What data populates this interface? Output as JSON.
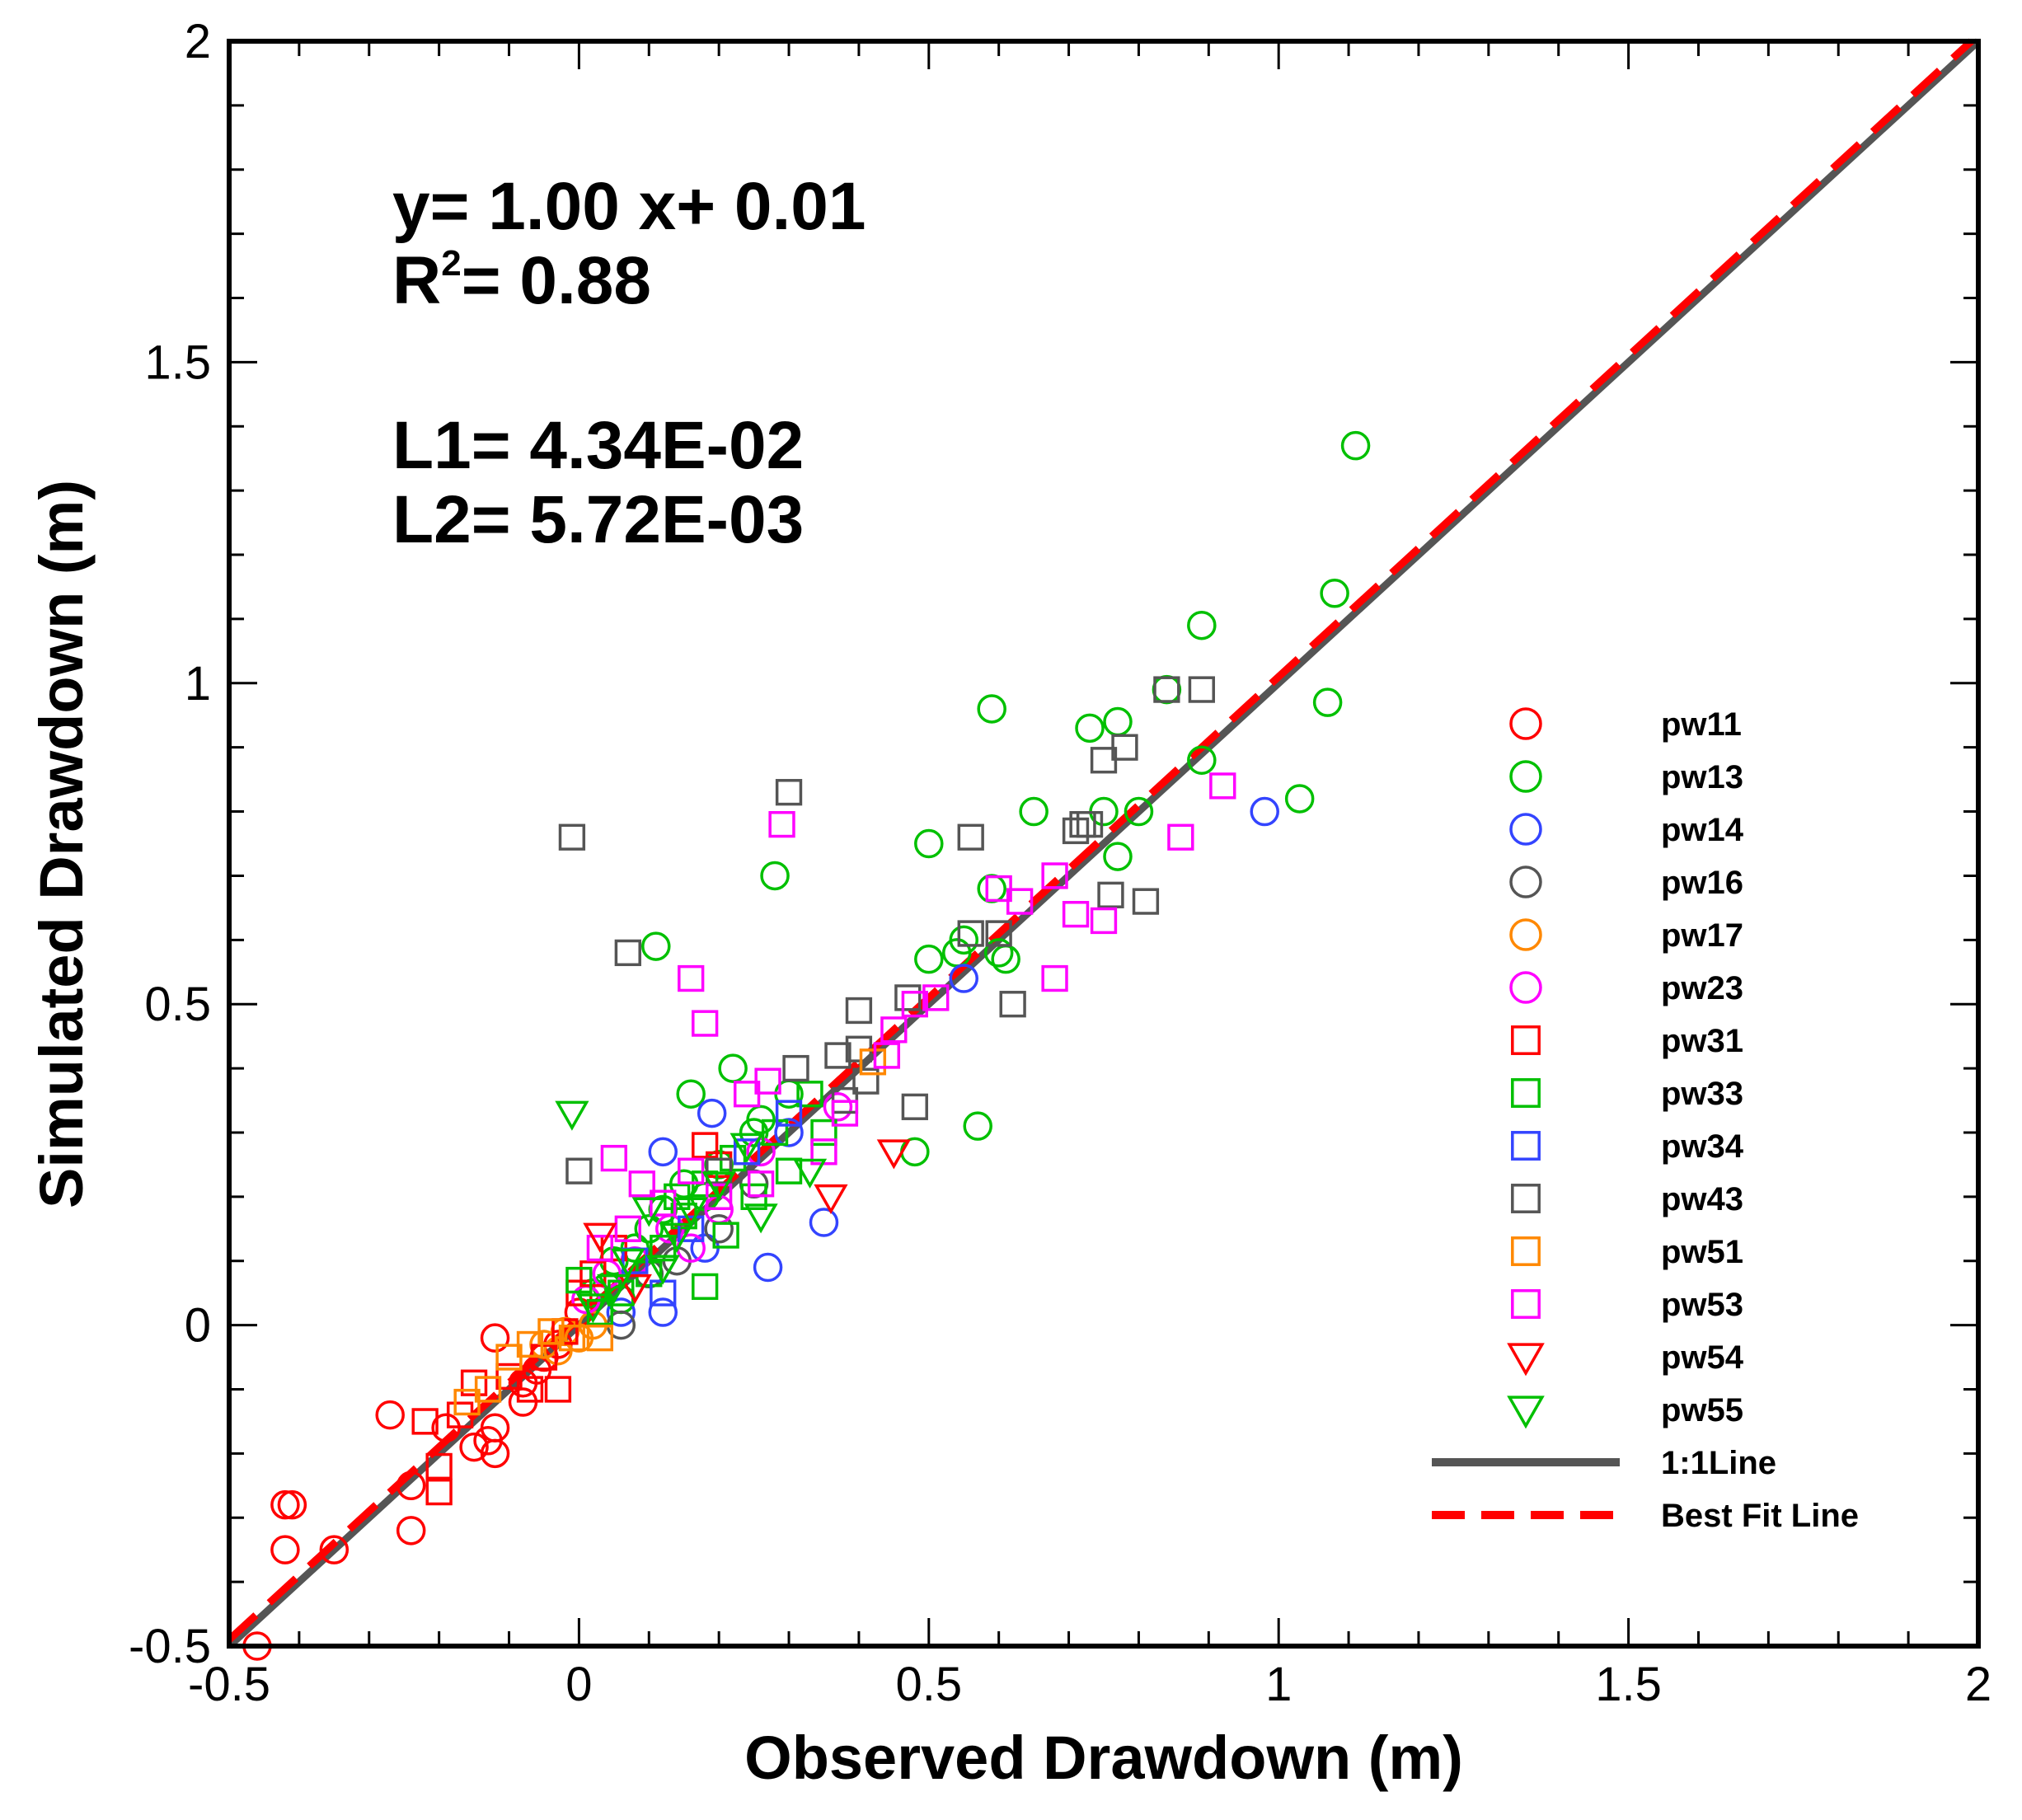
{
  "chart_data": {
    "type": "scatter",
    "title": "",
    "xlabel": "Observed Drawdown (m)",
    "ylabel": "Simulated Drawdown (m)",
    "xlim": [
      -0.5,
      2
    ],
    "ylim": [
      -0.5,
      2
    ],
    "x_ticks": [
      -0.5,
      0,
      0.5,
      1,
      1.5,
      2
    ],
    "x_tick_labels": [
      "-0.5",
      "0",
      "0.5",
      "1",
      "1.5",
      "2"
    ],
    "y_ticks": [
      -0.5,
      0,
      0.5,
      1,
      1.5,
      2
    ],
    "y_tick_labels": [
      "-0.5",
      "0",
      "0.5",
      "1",
      "1.5",
      "2"
    ],
    "grid": false,
    "legend_position": "right",
    "annotations": {
      "fit_equation": "y= 1.00 x+ 0.01",
      "r2_prefix": "R",
      "r2_exponent": "2",
      "r2_value": "= 0.88",
      "l1": "L1= 4.34E-02",
      "l2": "L2= 5.72E-03"
    },
    "lines": [
      {
        "name": "1:1Line",
        "color": "#555555",
        "style": "solid",
        "slope": 1.0,
        "intercept": 0.0
      },
      {
        "name": "Best Fit Line",
        "color": "#ff0000",
        "style": "dashed",
        "slope": 1.0,
        "intercept": 0.01
      }
    ],
    "series": [
      {
        "name": "pw11",
        "marker": "circle",
        "color": "#ff0000",
        "points": [
          [
            -0.46,
            -0.5
          ],
          [
            -0.42,
            -0.28
          ],
          [
            -0.41,
            -0.28
          ],
          [
            -0.42,
            -0.35
          ],
          [
            -0.35,
            -0.35
          ],
          [
            -0.27,
            -0.14
          ],
          [
            -0.24,
            -0.32
          ],
          [
            -0.24,
            -0.25
          ],
          [
            -0.19,
            -0.16
          ],
          [
            -0.15,
            -0.19
          ],
          [
            -0.12,
            -0.2
          ],
          [
            -0.12,
            -0.16
          ],
          [
            -0.13,
            -0.18
          ],
          [
            -0.12,
            -0.02
          ],
          [
            -0.08,
            -0.12
          ],
          [
            -0.08,
            -0.09
          ],
          [
            -0.06,
            -0.07
          ],
          [
            -0.05,
            -0.05
          ],
          [
            -0.03,
            -0.03
          ],
          [
            0.0,
            0.02
          ]
        ]
      },
      {
        "name": "pw13",
        "marker": "circle",
        "color": "#00c000",
        "points": [
          [
            1.11,
            1.37
          ],
          [
            1.08,
            1.14
          ],
          [
            0.89,
            1.09
          ],
          [
            0.84,
            0.99
          ],
          [
            0.77,
            0.94
          ],
          [
            0.73,
            0.93
          ],
          [
            0.59,
            0.96
          ],
          [
            1.07,
            0.97
          ],
          [
            0.89,
            0.88
          ],
          [
            0.8,
            0.8
          ],
          [
            0.77,
            0.73
          ],
          [
            0.75,
            0.8
          ],
          [
            0.65,
            0.8
          ],
          [
            1.03,
            0.82
          ],
          [
            0.5,
            0.75
          ],
          [
            0.28,
            0.7
          ],
          [
            0.59,
            0.68
          ],
          [
            0.6,
            0.58
          ],
          [
            0.61,
            0.57
          ],
          [
            0.5,
            0.57
          ],
          [
            0.54,
            0.58
          ],
          [
            0.55,
            0.6
          ],
          [
            0.11,
            0.59
          ],
          [
            0.57,
            0.31
          ],
          [
            0.48,
            0.27
          ],
          [
            0.22,
            0.4
          ],
          [
            0.16,
            0.36
          ],
          [
            0.3,
            0.36
          ],
          [
            0.25,
            0.3
          ],
          [
            0.2,
            0.25
          ],
          [
            0.15,
            0.22
          ],
          [
            0.1,
            0.15
          ],
          [
            0.05,
            0.1
          ],
          [
            0.02,
            0.05
          ],
          [
            0.08,
            0.12
          ],
          [
            0.12,
            0.18
          ],
          [
            0.18,
            0.2
          ],
          [
            0.26,
            0.32
          ],
          [
            0.04,
            0.06
          ],
          [
            0.06,
            0.04
          ]
        ]
      },
      {
        "name": "pw14",
        "marker": "circle",
        "color": "#3344ff",
        "points": [
          [
            0.98,
            0.8
          ],
          [
            0.55,
            0.54
          ],
          [
            0.35,
            0.16
          ],
          [
            0.27,
            0.09
          ],
          [
            0.19,
            0.33
          ],
          [
            0.12,
            0.27
          ],
          [
            0.12,
            0.02
          ],
          [
            0.06,
            0.02
          ],
          [
            0.3,
            0.3
          ],
          [
            0.18,
            0.12
          ]
        ]
      },
      {
        "name": "pw16",
        "marker": "circle",
        "color": "#555555",
        "points": [
          [
            0.06,
            0.0
          ],
          [
            0.1,
            0.08
          ],
          [
            0.2,
            0.15
          ],
          [
            0.14,
            0.1
          ],
          [
            0.25,
            0.22
          ]
        ]
      },
      {
        "name": "pw17",
        "marker": "circle",
        "color": "#ff8800",
        "points": [
          [
            -0.05,
            -0.03
          ],
          [
            -0.02,
            -0.01
          ],
          [
            0.0,
            -0.02
          ],
          [
            0.02,
            0.0
          ],
          [
            -0.03,
            -0.04
          ]
        ]
      },
      {
        "name": "pw23",
        "marker": "circle",
        "color": "#ff00ff",
        "points": [
          [
            0.01,
            0.04
          ],
          [
            0.04,
            0.08
          ],
          [
            0.08,
            0.1
          ],
          [
            0.13,
            0.15
          ],
          [
            0.2,
            0.18
          ],
          [
            0.37,
            0.34
          ],
          [
            0.26,
            0.27
          ],
          [
            0.16,
            0.12
          ]
        ]
      },
      {
        "name": "pw31",
        "marker": "square",
        "color": "#ff0000",
        "points": [
          [
            -0.22,
            -0.15
          ],
          [
            -0.2,
            -0.26
          ],
          [
            -0.2,
            -0.22
          ],
          [
            -0.17,
            -0.14
          ],
          [
            -0.15,
            -0.09
          ],
          [
            -0.1,
            -0.08
          ],
          [
            -0.07,
            -0.1
          ],
          [
            -0.03,
            -0.1
          ],
          [
            -0.05,
            -0.05
          ],
          [
            -0.02,
            -0.01
          ],
          [
            0.0,
            0.05
          ],
          [
            0.02,
            0.08
          ],
          [
            0.05,
            0.12
          ],
          [
            0.18,
            0.28
          ],
          [
            0.2,
            0.25
          ]
        ]
      },
      {
        "name": "pw33",
        "marker": "square",
        "color": "#00c000",
        "points": [
          [
            0.33,
            0.36
          ],
          [
            0.3,
            0.24
          ],
          [
            0.28,
            0.3
          ],
          [
            0.25,
            0.2
          ],
          [
            0.21,
            0.14
          ],
          [
            0.18,
            0.22
          ],
          [
            0.15,
            0.17
          ],
          [
            0.12,
            0.12
          ],
          [
            0.1,
            0.08
          ],
          [
            0.06,
            0.05
          ],
          [
            0.03,
            0.02
          ],
          [
            0.0,
            0.07
          ],
          [
            0.18,
            0.06
          ],
          [
            0.22,
            0.26
          ],
          [
            0.35,
            0.3
          ],
          [
            0.14,
            0.2
          ]
        ]
      },
      {
        "name": "pw34",
        "marker": "square",
        "color": "#3344ff",
        "points": [
          [
            0.24,
            0.27
          ],
          [
            0.16,
            0.15
          ],
          [
            0.08,
            0.1
          ],
          [
            0.3,
            0.33
          ],
          [
            0.12,
            0.05
          ]
        ]
      },
      {
        "name": "pw43",
        "marker": "square",
        "color": "#555555",
        "points": [
          [
            0.84,
            0.99
          ],
          [
            0.89,
            0.99
          ],
          [
            0.78,
            0.9
          ],
          [
            0.75,
            0.88
          ],
          [
            0.72,
            0.78
          ],
          [
            0.71,
            0.77
          ],
          [
            0.73,
            0.78
          ],
          [
            0.56,
            0.76
          ],
          [
            0.3,
            0.83
          ],
          [
            -0.01,
            0.76
          ],
          [
            0.07,
            0.58
          ],
          [
            0.76,
            0.67
          ],
          [
            0.81,
            0.66
          ],
          [
            0.6,
            0.61
          ],
          [
            0.56,
            0.61
          ],
          [
            0.62,
            0.5
          ],
          [
            0.47,
            0.51
          ],
          [
            0.4,
            0.49
          ],
          [
            0.48,
            0.34
          ],
          [
            0.4,
            0.43
          ],
          [
            0.37,
            0.42
          ],
          [
            0.31,
            0.4
          ],
          [
            0.41,
            0.38
          ],
          [
            0.2,
            0.24
          ],
          [
            0.0,
            0.24
          ],
          [
            0.38,
            0.35
          ]
        ]
      },
      {
        "name": "pw51",
        "marker": "square",
        "color": "#ff8800",
        "points": [
          [
            -0.16,
            -0.12
          ],
          [
            -0.13,
            -0.1
          ],
          [
            -0.1,
            -0.05
          ],
          [
            -0.07,
            -0.03
          ],
          [
            -0.04,
            -0.01
          ],
          [
            -0.01,
            -0.02
          ],
          [
            0.42,
            0.41
          ],
          [
            0.03,
            -0.02
          ]
        ]
      },
      {
        "name": "pw53",
        "marker": "square",
        "color": "#ff00ff",
        "points": [
          [
            0.92,
            0.84
          ],
          [
            0.86,
            0.76
          ],
          [
            0.75,
            0.63
          ],
          [
            0.71,
            0.64
          ],
          [
            0.68,
            0.7
          ],
          [
            0.68,
            0.54
          ],
          [
            0.6,
            0.68
          ],
          [
            0.63,
            0.66
          ],
          [
            0.51,
            0.51
          ],
          [
            0.48,
            0.5
          ],
          [
            0.29,
            0.78
          ],
          [
            0.16,
            0.54
          ],
          [
            0.18,
            0.47
          ],
          [
            0.27,
            0.38
          ],
          [
            0.24,
            0.36
          ],
          [
            0.35,
            0.27
          ],
          [
            0.38,
            0.33
          ],
          [
            0.05,
            0.26
          ],
          [
            0.09,
            0.22
          ],
          [
            0.12,
            0.19
          ],
          [
            0.16,
            0.24
          ],
          [
            0.03,
            0.12
          ],
          [
            0.07,
            0.15
          ],
          [
            0.44,
            0.42
          ],
          [
            0.45,
            0.46
          ],
          [
            0.2,
            0.2
          ],
          [
            0.26,
            0.22
          ]
        ]
      },
      {
        "name": "pw54",
        "marker": "triangle-down",
        "color": "#ff0000",
        "points": [
          [
            0.45,
            0.27
          ],
          [
            0.36,
            0.2
          ],
          [
            0.03,
            0.14
          ],
          [
            0.08,
            0.06
          ]
        ]
      },
      {
        "name": "pw55",
        "marker": "triangle-down",
        "color": "#00c000",
        "points": [
          [
            -0.01,
            0.33
          ],
          [
            0.33,
            0.24
          ],
          [
            0.26,
            0.17
          ],
          [
            0.2,
            0.22
          ],
          [
            0.14,
            0.14
          ],
          [
            0.1,
            0.18
          ],
          [
            0.05,
            0.06
          ],
          [
            0.07,
            0.1
          ],
          [
            0.16,
            0.18
          ],
          [
            0.24,
            0.28
          ],
          [
            0.12,
            0.09
          ],
          [
            0.02,
            0.03
          ]
        ]
      }
    ]
  }
}
